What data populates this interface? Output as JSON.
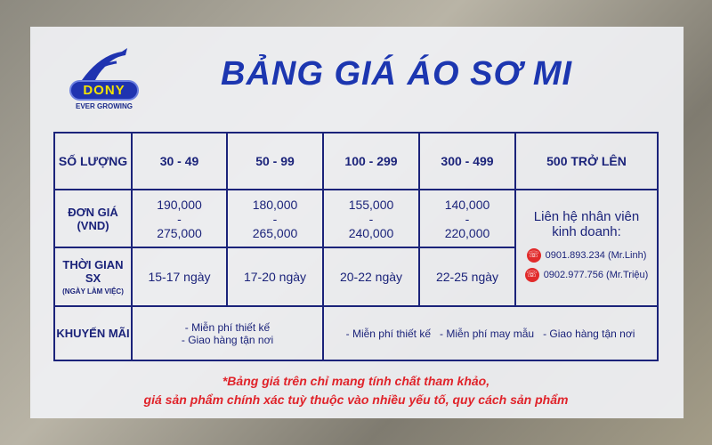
{
  "logo": {
    "brand": "DONY",
    "tagline": "EVER GROWING"
  },
  "title": "BẢNG GIÁ ÁO SƠ MI",
  "table": {
    "quantity_label": "SỐ LƯỢNG",
    "tiers": [
      "30 - 49",
      "50 - 99",
      "100 - 299",
      "300 - 499",
      "500 TRỞ LÊN"
    ],
    "price_label": "ĐƠN GIÁ",
    "price_unit": "(VND)",
    "prices": [
      {
        "min": "190,000",
        "max": "275,000"
      },
      {
        "min": "180,000",
        "max": "265,000"
      },
      {
        "min": "155,000",
        "max": "240,000"
      },
      {
        "min": "140,000",
        "max": "220,000"
      }
    ],
    "contact": {
      "text": "Liên hệ nhân viên kinh doanh:",
      "phones": [
        "0901.893.234 (Mr.Linh)",
        "0902.977.756 (Mr.Triệu)"
      ]
    },
    "time_label": "THỜI GIAN SX",
    "time_sub": "(NGÀY LÀM VIỆC)",
    "times": [
      "15-17 ngày",
      "17-20 ngày",
      "20-22 ngày",
      "22-25 ngày"
    ],
    "promo_label": "KHUYẾN MÃI",
    "promo_small": [
      "- Miễn phí thiết kế",
      "- Giao hàng tận nơi"
    ],
    "promo_large": [
      "- Miễn phí thiết kế",
      "- Miễn phí may mẫu",
      "- Giao hàng tận nơi"
    ]
  },
  "note": [
    "*Bảng giá trên chỉ mang tính chất tham khảo,",
    "giá sản phẩm chính xác tuỳ thuộc vào nhiều yếu tố, quy cách sản phẩm"
  ],
  "colors": {
    "primary": "#1b237a",
    "title": "#1c36b0",
    "note": "#e0232a"
  }
}
